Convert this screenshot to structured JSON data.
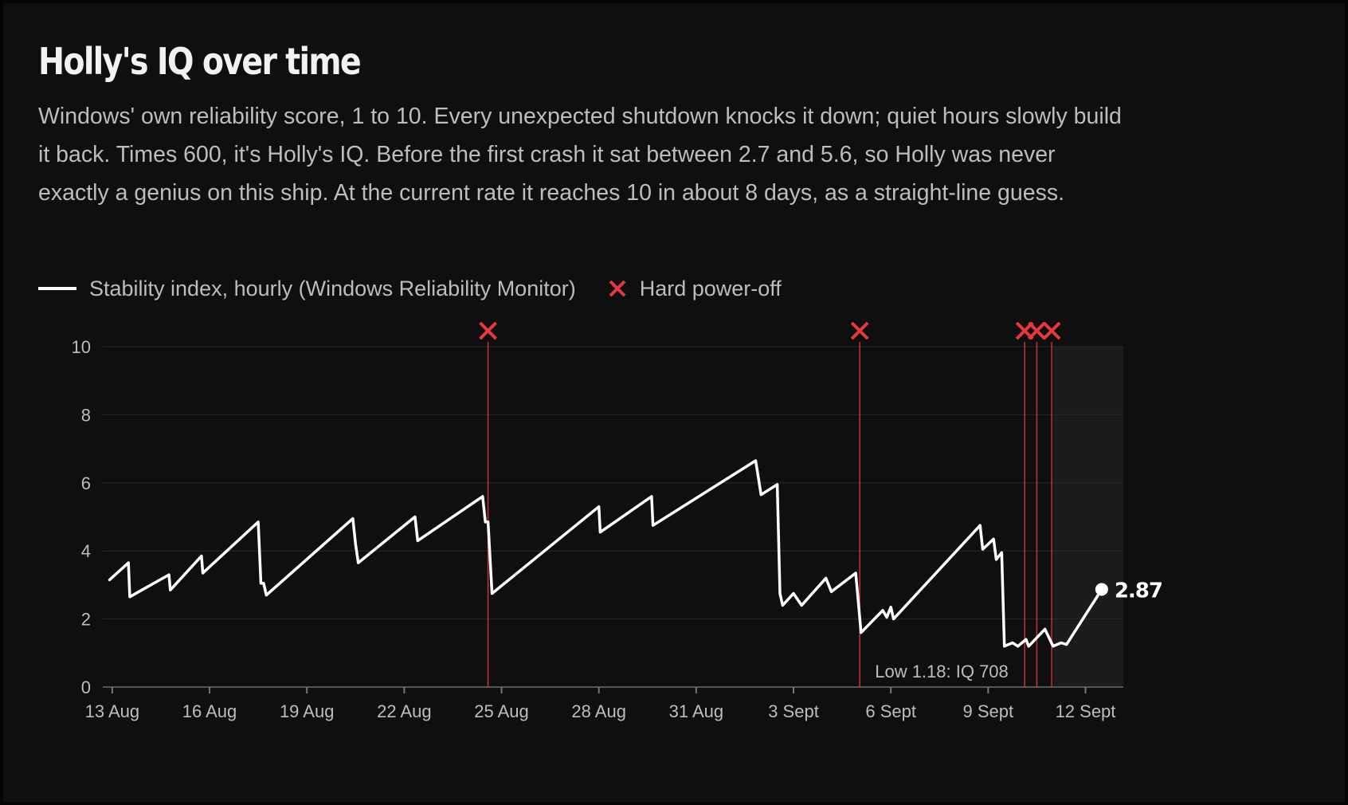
{
  "title": "Holly's IQ over time",
  "subtitle": "Windows' own reliability score, 1 to 10. Every unexpected shutdown knocks it down; quiet hours slowly build it back. Times 600, it's Holly's IQ. Before the first crash it sat between 2.7 and 5.6, so Holly was never exactly a genius on this ship. At the current rate it reaches 10 in about 8 days, as a straight-line guess.",
  "legend": {
    "line_label": "Stability index, hourly (Windows Reliability Monitor)",
    "marker_label": "Hard power-off"
  },
  "colors": {
    "background": "#0f0f0f",
    "line": "#ffffff",
    "power_off": "#e8383d",
    "grid": "#2a2a2a",
    "text": "#bdbdbd"
  },
  "chart_data": {
    "type": "line",
    "series": [
      {
        "name": "Stability index, hourly (Windows Reliability Monitor)",
        "points": [
          [
            "2024-08-12T22:00",
            3.15
          ],
          [
            "2024-08-13T12:00",
            3.65
          ],
          [
            "2024-08-13T13:00",
            2.65
          ],
          [
            "2024-08-14T18:00",
            3.3
          ],
          [
            "2024-08-14T19:00",
            2.85
          ],
          [
            "2024-08-15T18:00",
            3.85
          ],
          [
            "2024-08-15T19:00",
            3.35
          ],
          [
            "2024-08-17T12:00",
            4.85
          ],
          [
            "2024-08-17T14:00",
            3.05
          ],
          [
            "2024-08-17T16:00",
            3.05
          ],
          [
            "2024-08-17T18:00",
            2.7
          ],
          [
            "2024-08-20T10:00",
            4.95
          ],
          [
            "2024-08-20T12:00",
            4.2
          ],
          [
            "2024-08-20T14:00",
            3.65
          ],
          [
            "2024-08-22T08:00",
            5.0
          ],
          [
            "2024-08-22T10:00",
            4.3
          ],
          [
            "2024-08-24T10:00",
            5.6
          ],
          [
            "2024-08-24T12:00",
            4.85
          ],
          [
            "2024-08-24T14:00",
            4.85
          ],
          [
            "2024-08-24T17:00",
            2.75
          ],
          [
            "2024-08-28T00:00",
            5.3
          ],
          [
            "2024-08-28T01:00",
            4.55
          ],
          [
            "2024-08-29T15:00",
            5.6
          ],
          [
            "2024-08-29T16:00",
            4.75
          ],
          [
            "2024-09-01T20:00",
            6.65
          ],
          [
            "2024-09-02T00:00",
            5.65
          ],
          [
            "2024-09-02T12:00",
            5.95
          ],
          [
            "2024-09-02T14:00",
            2.75
          ],
          [
            "2024-09-02T16:00",
            2.4
          ],
          [
            "2024-09-03T00:00",
            2.75
          ],
          [
            "2024-09-03T06:00",
            2.4
          ],
          [
            "2024-09-04T00:00",
            3.2
          ],
          [
            "2024-09-04T04:00",
            2.8
          ],
          [
            "2024-09-04T22:00",
            3.35
          ],
          [
            "2024-09-05T02:00",
            1.6
          ],
          [
            "2024-09-05T18:00",
            2.25
          ],
          [
            "2024-09-05T21:00",
            2.05
          ],
          [
            "2024-09-06T00:00",
            2.35
          ],
          [
            "2024-09-06T02:00",
            2.0
          ],
          [
            "2024-09-08T18:00",
            4.75
          ],
          [
            "2024-09-08T20:00",
            4.05
          ],
          [
            "2024-09-09T04:00",
            4.35
          ],
          [
            "2024-09-09T06:00",
            3.75
          ],
          [
            "2024-09-09T10:00",
            3.95
          ],
          [
            "2024-09-09T12:00",
            1.2
          ],
          [
            "2024-09-09T18:00",
            1.3
          ],
          [
            "2024-09-09T22:00",
            1.2
          ],
          [
            "2024-09-10T04:00",
            1.4
          ],
          [
            "2024-09-10T06:00",
            1.2
          ],
          [
            "2024-09-10T12:00",
            1.45
          ],
          [
            "2024-09-10T18:00",
            1.7
          ],
          [
            "2024-09-11T00:00",
            1.2
          ],
          [
            "2024-09-11T06:00",
            1.3
          ],
          [
            "2024-09-11T10:00",
            1.25
          ],
          [
            "2024-09-12T12:00",
            2.87
          ]
        ],
        "end_label": "2.87"
      }
    ],
    "power_offs": [
      "2024-08-24T14:00",
      "2024-09-05T01:00",
      "2024-09-10T03:00",
      "2024-09-10T12:00",
      "2024-09-10T23:00"
    ],
    "low_annotation": "Low 1.18: IQ 708",
    "forecast_shade_start": "2024-09-11T00:00",
    "x_start": "2024-08-12T17:00",
    "x_end": "2024-09-13T04:00",
    "x_ticks": [
      {
        "date": "2024-08-13",
        "label": "13 Aug"
      },
      {
        "date": "2024-08-16",
        "label": "16 Aug"
      },
      {
        "date": "2024-08-19",
        "label": "19 Aug"
      },
      {
        "date": "2024-08-22",
        "label": "22 Aug"
      },
      {
        "date": "2024-08-25",
        "label": "25 Aug"
      },
      {
        "date": "2024-08-28",
        "label": "28 Aug"
      },
      {
        "date": "2024-08-31",
        "label": "31 Aug"
      },
      {
        "date": "2024-09-03",
        "label": "3 Sept"
      },
      {
        "date": "2024-09-06",
        "label": "6 Sept"
      },
      {
        "date": "2024-09-09",
        "label": "9 Sept"
      },
      {
        "date": "2024-09-12",
        "label": "12 Sept"
      }
    ],
    "y_ticks": [
      0,
      2,
      4,
      6,
      8,
      10
    ],
    "ylim": [
      0,
      10
    ],
    "grid": true
  }
}
